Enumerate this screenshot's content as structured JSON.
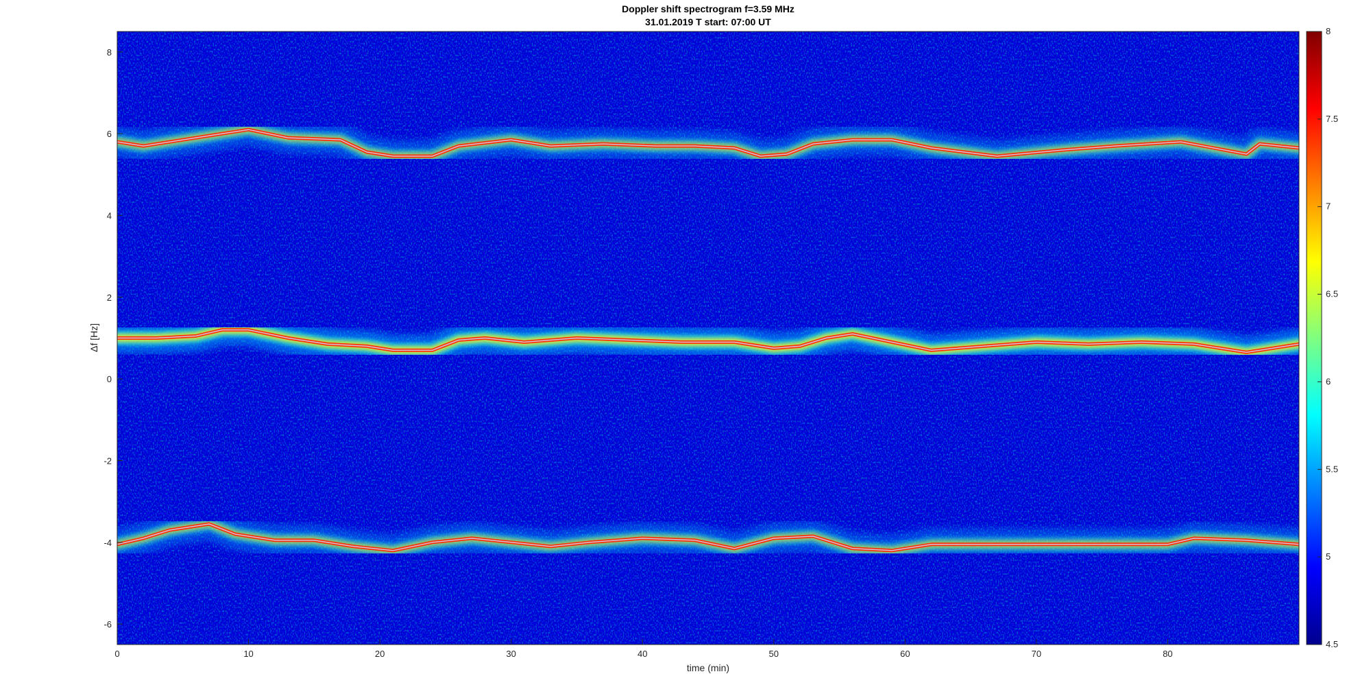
{
  "chart_data": {
    "type": "heatmap",
    "title": "Doppler shift spectrogram f=3.59 MHz",
    "subtitle": "31.01.2019   T start: 07:00 UT",
    "xlabel": "time (min)",
    "ylabel": "Δf [Hz]",
    "xlim": [
      0,
      90
    ],
    "ylim": [
      -6.5,
      8.5
    ],
    "x_ticks": [
      0,
      10,
      20,
      30,
      40,
      50,
      60,
      70,
      80
    ],
    "y_ticks": [
      -6,
      -4,
      -2,
      0,
      2,
      4,
      6,
      8
    ],
    "colorbar": {
      "colormap": "jet",
      "range": [
        4.5,
        8
      ],
      "ticks": [
        "4.5",
        "5",
        "5.5",
        "6",
        "6.5",
        "7",
        "7.5",
        "8"
      ]
    },
    "series": [
      {
        "x": [
          0,
          2,
          5,
          7,
          10,
          13,
          17,
          19,
          21,
          24,
          26,
          30,
          33,
          37,
          41,
          44,
          47,
          49,
          51,
          53,
          56,
          59,
          62,
          67,
          72,
          76,
          81,
          86,
          87,
          90
        ],
        "values": [
          5.8,
          5.7,
          5.85,
          5.95,
          6.1,
          5.9,
          5.85,
          5.55,
          5.45,
          5.45,
          5.7,
          5.85,
          5.7,
          5.75,
          5.7,
          5.7,
          5.65,
          5.45,
          5.5,
          5.75,
          5.85,
          5.85,
          5.65,
          5.45,
          5.6,
          5.7,
          5.8,
          5.5,
          5.75,
          5.65
        ]
      },
      {
        "x": [
          0,
          3,
          6,
          8,
          10,
          13,
          16,
          19,
          21,
          24,
          26,
          28,
          31,
          35,
          39,
          43,
          47,
          50,
          52,
          54,
          56,
          59,
          62,
          66,
          70,
          74,
          78,
          82,
          86,
          88,
          90
        ],
        "values": [
          1.0,
          1.0,
          1.05,
          1.2,
          1.2,
          1.0,
          0.85,
          0.8,
          0.7,
          0.7,
          0.95,
          1.0,
          0.9,
          1.0,
          0.95,
          0.9,
          0.9,
          0.75,
          0.8,
          1.0,
          1.1,
          0.9,
          0.7,
          0.8,
          0.9,
          0.85,
          0.9,
          0.85,
          0.65,
          0.75,
          0.85
        ]
      },
      {
        "x": [
          0,
          2,
          4,
          7,
          9,
          12,
          15,
          18,
          21,
          24,
          27,
          30,
          33,
          36,
          40,
          44,
          47,
          50,
          53,
          56,
          59,
          62,
          66,
          70,
          75,
          80,
          82,
          86,
          90
        ],
        "values": [
          -4.05,
          -3.9,
          -3.7,
          -3.55,
          -3.8,
          -3.95,
          -3.95,
          -4.1,
          -4.2,
          -4.0,
          -3.9,
          -4.0,
          -4.1,
          -4.0,
          -3.9,
          -3.95,
          -4.15,
          -3.9,
          -3.85,
          -4.15,
          -4.2,
          -4.05,
          -4.05,
          -4.05,
          -4.05,
          -4.05,
          -3.9,
          -3.95,
          -4.05
        ]
      }
    ]
  }
}
